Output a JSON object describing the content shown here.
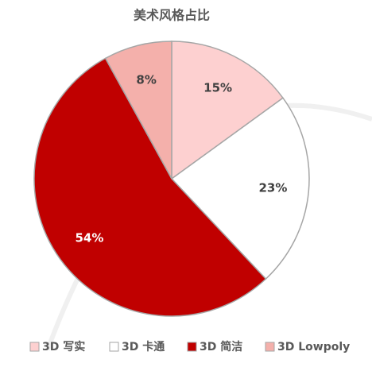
{
  "chart_data": {
    "type": "pie",
    "title": "美术风格占比",
    "categories": [
      "3D 写实",
      "3D 卡通",
      "3D 简洁",
      "3D Lowpoly"
    ],
    "values": [
      15,
      23,
      54,
      8
    ],
    "value_labels": [
      "15%",
      "23%",
      "54%",
      "8%"
    ],
    "colors": [
      "#fdd0d0",
      "#ffffff",
      "#c00000",
      "#f4b0ab"
    ],
    "label_colors": [
      "#404040",
      "#404040",
      "#ffffff",
      "#404040"
    ]
  }
}
